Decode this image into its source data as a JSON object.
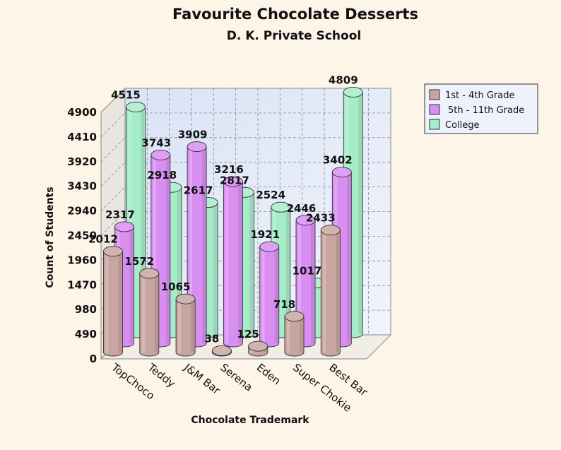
{
  "chart_data": {
    "type": "bar",
    "title": "Favourite Chocolate Desserts",
    "subtitle": "D. K. Private School",
    "xlabel": "Chocolate Trademark",
    "ylabel": "Count of Students",
    "ylim": [
      0,
      4900
    ],
    "yticks": [
      "0",
      "490",
      "980",
      "1470",
      "1960",
      "2450",
      "2940",
      "3430",
      "3920",
      "4410",
      "4900"
    ],
    "categories": [
      "TopChoco",
      "Teddy",
      "J&M Bar",
      "Serena",
      "Eden",
      "Super Chokie",
      "Best Bar"
    ],
    "series": [
      {
        "name": "1st - 4th Grade",
        "color": "#c9a5a1",
        "values": [
          2012,
          1572,
          1065,
          38,
          125,
          718,
          2433
        ]
      },
      {
        "name": "5th - 11th Grade",
        "color": "#d98ef2",
        "values": [
          2317,
          3743,
          3909,
          3216,
          1921,
          2446,
          3402
        ]
      },
      {
        "name": "College",
        "color": "#a6ecc8",
        "values": [
          4515,
          2918,
          2617,
          2817,
          2524,
          1017,
          4809
        ]
      }
    ],
    "value_labels": [
      [
        "2012",
        "1572",
        "1065",
        "38",
        "125",
        "718",
        "2433"
      ],
      [
        "2317",
        "3743",
        "3909",
        "3216",
        "1921",
        "2446",
        "3402"
      ],
      [
        "4515",
        "2918",
        "2617",
        "2817",
        "2524",
        "1017",
        "4809"
      ]
    ],
    "grid": true,
    "legend": "top-right",
    "style": "3d-cylinder"
  },
  "colors": {
    "background": "#fdf5e8",
    "plot_wall": "#e4ebf8",
    "side_wall": "#e9e5e0",
    "floor": "#f1eee6",
    "grid": "#8a8a8a"
  }
}
